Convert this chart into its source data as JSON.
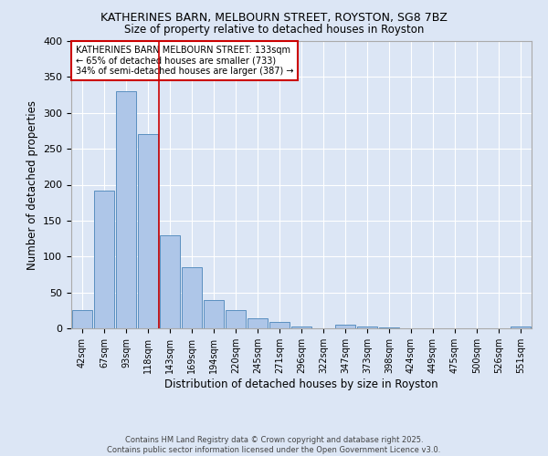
{
  "title1": "KATHERINES BARN, MELBOURN STREET, ROYSTON, SG8 7BZ",
  "title2": "Size of property relative to detached houses in Royston",
  "xlabel": "Distribution of detached houses by size in Royston",
  "ylabel": "Number of detached properties",
  "footer1": "Contains HM Land Registry data © Crown copyright and database right 2025.",
  "footer2": "Contains public sector information licensed under the Open Government Licence v3.0.",
  "annotation_line1": "KATHERINES BARN MELBOURN STREET: 133sqm",
  "annotation_line2": "← 65% of detached houses are smaller (733)",
  "annotation_line3": "34% of semi-detached houses are larger (387) →",
  "bar_labels": [
    "42sqm",
    "67sqm",
    "93sqm",
    "118sqm",
    "143sqm",
    "169sqm",
    "194sqm",
    "220sqm",
    "245sqm",
    "271sqm",
    "296sqm",
    "322sqm",
    "347sqm",
    "373sqm",
    "398sqm",
    "424sqm",
    "449sqm",
    "475sqm",
    "500sqm",
    "526sqm",
    "551sqm"
  ],
  "bar_values": [
    25,
    192,
    330,
    270,
    130,
    85,
    40,
    26,
    14,
    9,
    3,
    0,
    5,
    2,
    1,
    0,
    0,
    0,
    0,
    0,
    2
  ],
  "bar_color": "#aec6e8",
  "bar_edge_color": "#5a8fc0",
  "vline_color": "#cc0000",
  "vline_x_index": 3.5,
  "annotation_box_edge": "#cc0000",
  "background_color": "#dce6f5",
  "plot_bg_color": "#dce6f5",
  "grid_color": "#ffffff",
  "ylim": [
    0,
    400
  ],
  "yticks": [
    0,
    50,
    100,
    150,
    200,
    250,
    300,
    350,
    400
  ]
}
